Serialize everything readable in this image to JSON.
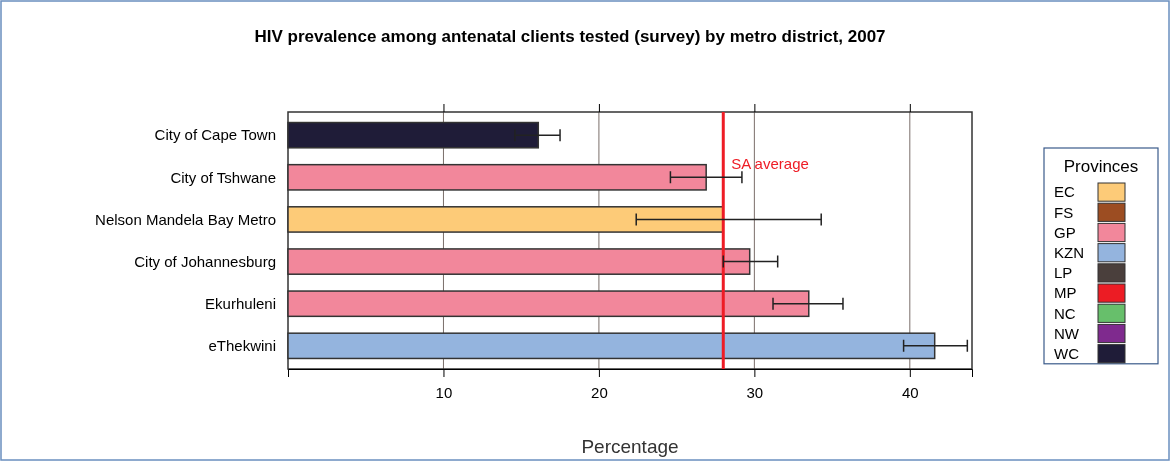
{
  "chart_data": {
    "type": "bar",
    "orientation": "horizontal",
    "stacked": true,
    "title": "HIV prevalence among antenatal clients tested (survey) by metro district, 2007",
    "xlabel": "Percentage",
    "legend_title": "Provinces",
    "legend": "right",
    "categories": [
      "City of Cape Town",
      "City of Tshwane",
      "Nelson Mandela Bay Metro",
      "City of Johannesburg",
      "Ekurhuleni",
      "eThekwini"
    ],
    "series": [
      {
        "name": "EC",
        "color": "#fdcb78",
        "values": [
          null,
          null,
          28.0,
          null,
          null,
          null
        ],
        "errors": [
          null,
          null,
          [
            22.4,
            34.3
          ],
          null,
          null,
          null
        ]
      },
      {
        "name": "FS",
        "color": "#9c4d22",
        "values": [
          null,
          null,
          null,
          null,
          null,
          null
        ]
      },
      {
        "name": "GP",
        "color": "#f2879b",
        "values": [
          null,
          26.9,
          null,
          29.7,
          33.5,
          null
        ],
        "errors": [
          null,
          [
            24.6,
            29.2
          ],
          null,
          [
            28.0,
            31.5
          ],
          [
            31.2,
            35.7
          ],
          null
        ]
      },
      {
        "name": "KZN",
        "color": "#94b4de",
        "values": [
          null,
          null,
          null,
          null,
          null,
          41.6
        ],
        "errors": [
          null,
          null,
          null,
          null,
          null,
          [
            39.6,
            43.7
          ]
        ]
      },
      {
        "name": "LP",
        "color": "#4a3f3c",
        "values": [
          null,
          null,
          null,
          null,
          null,
          null
        ]
      },
      {
        "name": "MP",
        "color": "#ec1c24",
        "values": [
          null,
          null,
          null,
          null,
          null,
          null
        ]
      },
      {
        "name": "NC",
        "color": "#67bf6b",
        "values": [
          null,
          null,
          null,
          null,
          null,
          null
        ]
      },
      {
        "name": "NW",
        "color": "#7f2a8e",
        "values": [
          null,
          null,
          null,
          null,
          null,
          null
        ]
      },
      {
        "name": "WC",
        "color": "#1f1c38",
        "values": [
          16.1,
          null,
          null,
          null,
          null,
          null
        ],
        "errors": [
          [
            14.6,
            17.5
          ],
          null,
          null,
          null,
          null,
          null
        ]
      }
    ],
    "xlim": [
      0,
      44
    ],
    "xticks": [
      10,
      20,
      30,
      40
    ],
    "grid": "x",
    "ref_lines": [
      {
        "axis": "x",
        "value": 28.0,
        "label": "SA average",
        "color": "#ee1c25"
      }
    ]
  }
}
